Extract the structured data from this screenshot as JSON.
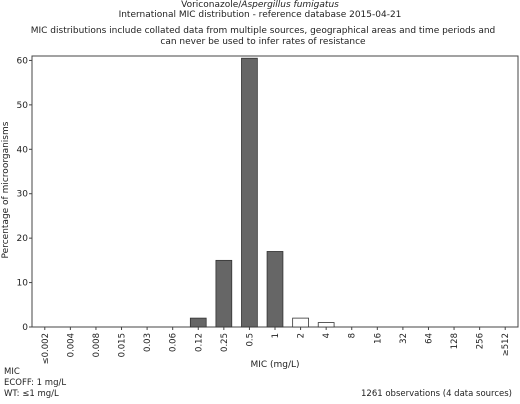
{
  "title_line1": {
    "prefix": "Voriconazole/",
    "organism": "Aspergillus fumigatus"
  },
  "title_line2": "International MIC distribution - reference database 2015-04-21",
  "subtitle": "MIC distributions include collated data from multiple sources, geographical areas and time periods and can never be used to infer rates of resistance",
  "footer": {
    "label": "MIC",
    "ecoff": "ECOFF: 1 mg/L",
    "wt": "WT: ≤1 mg/L",
    "observations": "1261 observations (4 data sources)"
  },
  "colors": {
    "wild_type": "#666666",
    "non_wild_type": "#ffffff",
    "outline": "#333333"
  },
  "chart_data": {
    "type": "bar",
    "categories": [
      "≤0.002",
      "0.004",
      "0.008",
      "0.015",
      "0.03",
      "0.06",
      "0.12",
      "0.25",
      "0.5",
      "1",
      "2",
      "4",
      "8",
      "16",
      "32",
      "64",
      "128",
      "256",
      "≥512"
    ],
    "series": [
      {
        "values": [
          0,
          0,
          0,
          0,
          0,
          0,
          2,
          15,
          60.5,
          17,
          2,
          1,
          0,
          0,
          0,
          0,
          0,
          0,
          0
        ]
      }
    ],
    "wild_type_upper_category": "1",
    "xlabel": "MIC (mg/L)",
    "ylabel": "Percentage of microorganisms",
    "ylim": [
      0,
      61
    ],
    "yticks": [
      0,
      10,
      20,
      30,
      40,
      50,
      60
    ],
    "grid": false
  }
}
